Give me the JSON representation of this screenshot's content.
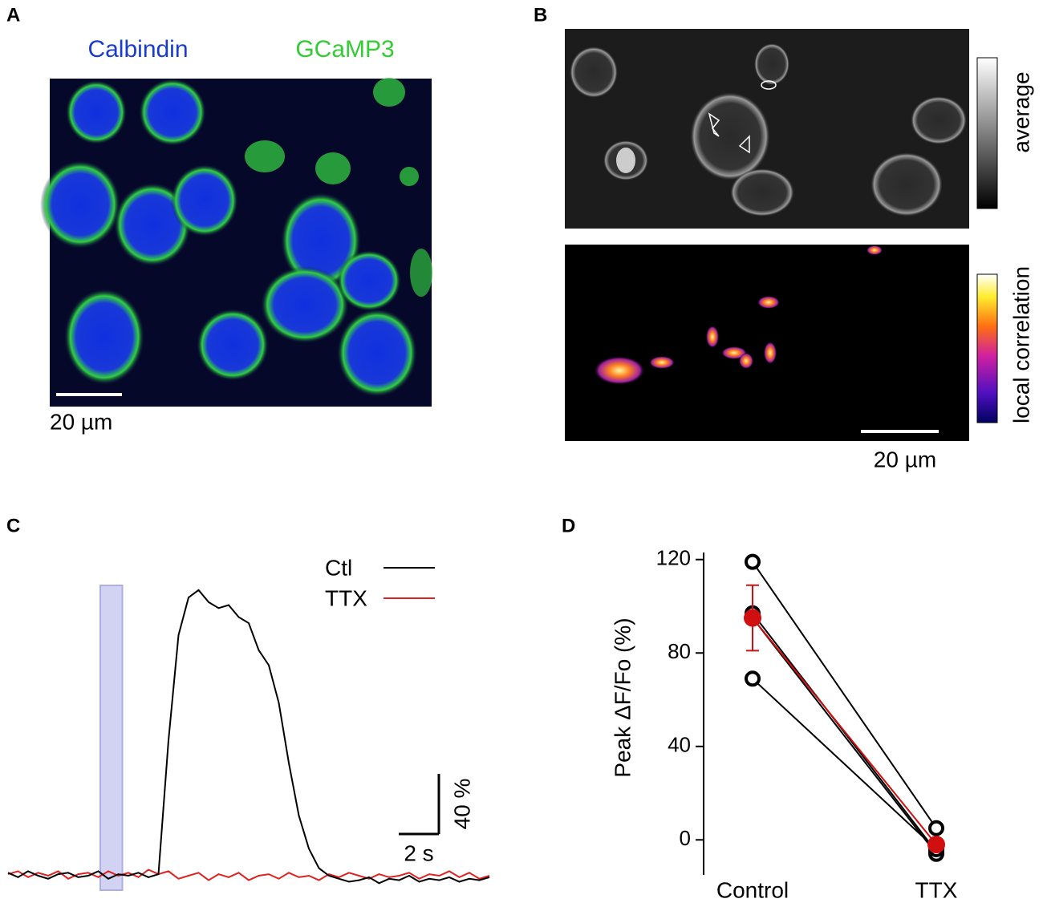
{
  "panel_a": {
    "label": "A",
    "stain_1": "Calbindin",
    "stain_2": "GCaMP3",
    "scale_bar": "20 µm"
  },
  "panel_b": {
    "label": "B",
    "colorbar_top": "average",
    "colorbar_bottom": "local correlation",
    "scale_bar": "20 µm"
  },
  "chart_data": [
    {
      "type": "line",
      "panel_label": "C",
      "x": [
        0,
        0.5,
        1,
        1.5,
        2,
        2.5,
        3,
        3.5,
        4,
        4.5,
        5,
        5.5,
        6,
        6.5,
        7,
        7.5,
        8,
        8.5,
        9,
        9.5,
        10,
        10.5,
        11,
        11.5,
        12,
        12.5,
        13,
        13.5,
        14,
        14.5,
        15,
        15.5,
        16,
        16.5,
        17,
        17.5,
        18,
        18.5,
        19,
        19.5,
        20,
        20.5,
        21,
        21.5,
        22,
        22.5,
        23,
        23.5,
        24
      ],
      "series": [
        {
          "name": "Ctl",
          "color": "#000000",
          "values": [
            2,
            -1,
            3,
            0,
            -2,
            1,
            2,
            -1,
            0,
            3,
            -2,
            1,
            0,
            2,
            -1,
            1,
            90,
            160,
            185,
            190,
            182,
            178,
            180,
            172,
            168,
            150,
            140,
            115,
            75,
            40,
            18,
            5,
            0,
            -2,
            -4,
            -3,
            -1,
            -5,
            -2,
            -3,
            0,
            -4,
            -2,
            -3,
            -1,
            -4,
            -2,
            -3,
            -1
          ]
        },
        {
          "name": "TTX",
          "color": "#dd2222",
          "values": [
            1,
            3,
            -1,
            2,
            0,
            3,
            -2,
            1,
            2,
            -1,
            3,
            0,
            2,
            -1,
            4,
            1,
            3,
            -2,
            0,
            2,
            -3,
            1,
            -1,
            2,
            -3,
            0,
            1,
            -2,
            2,
            -1,
            0,
            -3,
            1,
            -1,
            2,
            0,
            -2,
            1,
            -1,
            0,
            2,
            -2,
            1,
            0,
            3,
            -1,
            2,
            -2,
            0
          ]
        }
      ],
      "xlim": [
        0,
        24
      ],
      "ylim": [
        -10,
        200
      ],
      "stimulus": [
        4.6,
        5.7
      ],
      "scale_bar_x": {
        "value": 2,
        "label": "2 s"
      },
      "scale_bar_y": {
        "value": 40,
        "label": "40 %"
      },
      "legend": "top-right"
    },
    {
      "type": "paired",
      "panel_label": "D",
      "categories": [
        "Control",
        "TTX"
      ],
      "y_label": "Peak ΔF/Fo (%)",
      "series": [
        {
          "color": "#000000",
          "values": [
            119,
            5
          ]
        },
        {
          "color": "#000000",
          "values": [
            97,
            -5
          ]
        },
        {
          "color": "#000000",
          "values": [
            95,
            -6
          ]
        },
        {
          "color": "#000000",
          "values": [
            69,
            -4
          ]
        },
        {
          "color": "#d01010",
          "values": [
            95,
            -2
          ],
          "error": [
            14,
            2
          ],
          "mean": true
        }
      ],
      "ylim": [
        -15,
        123
      ],
      "yticks": [
        0,
        40,
        80,
        120
      ]
    }
  ]
}
